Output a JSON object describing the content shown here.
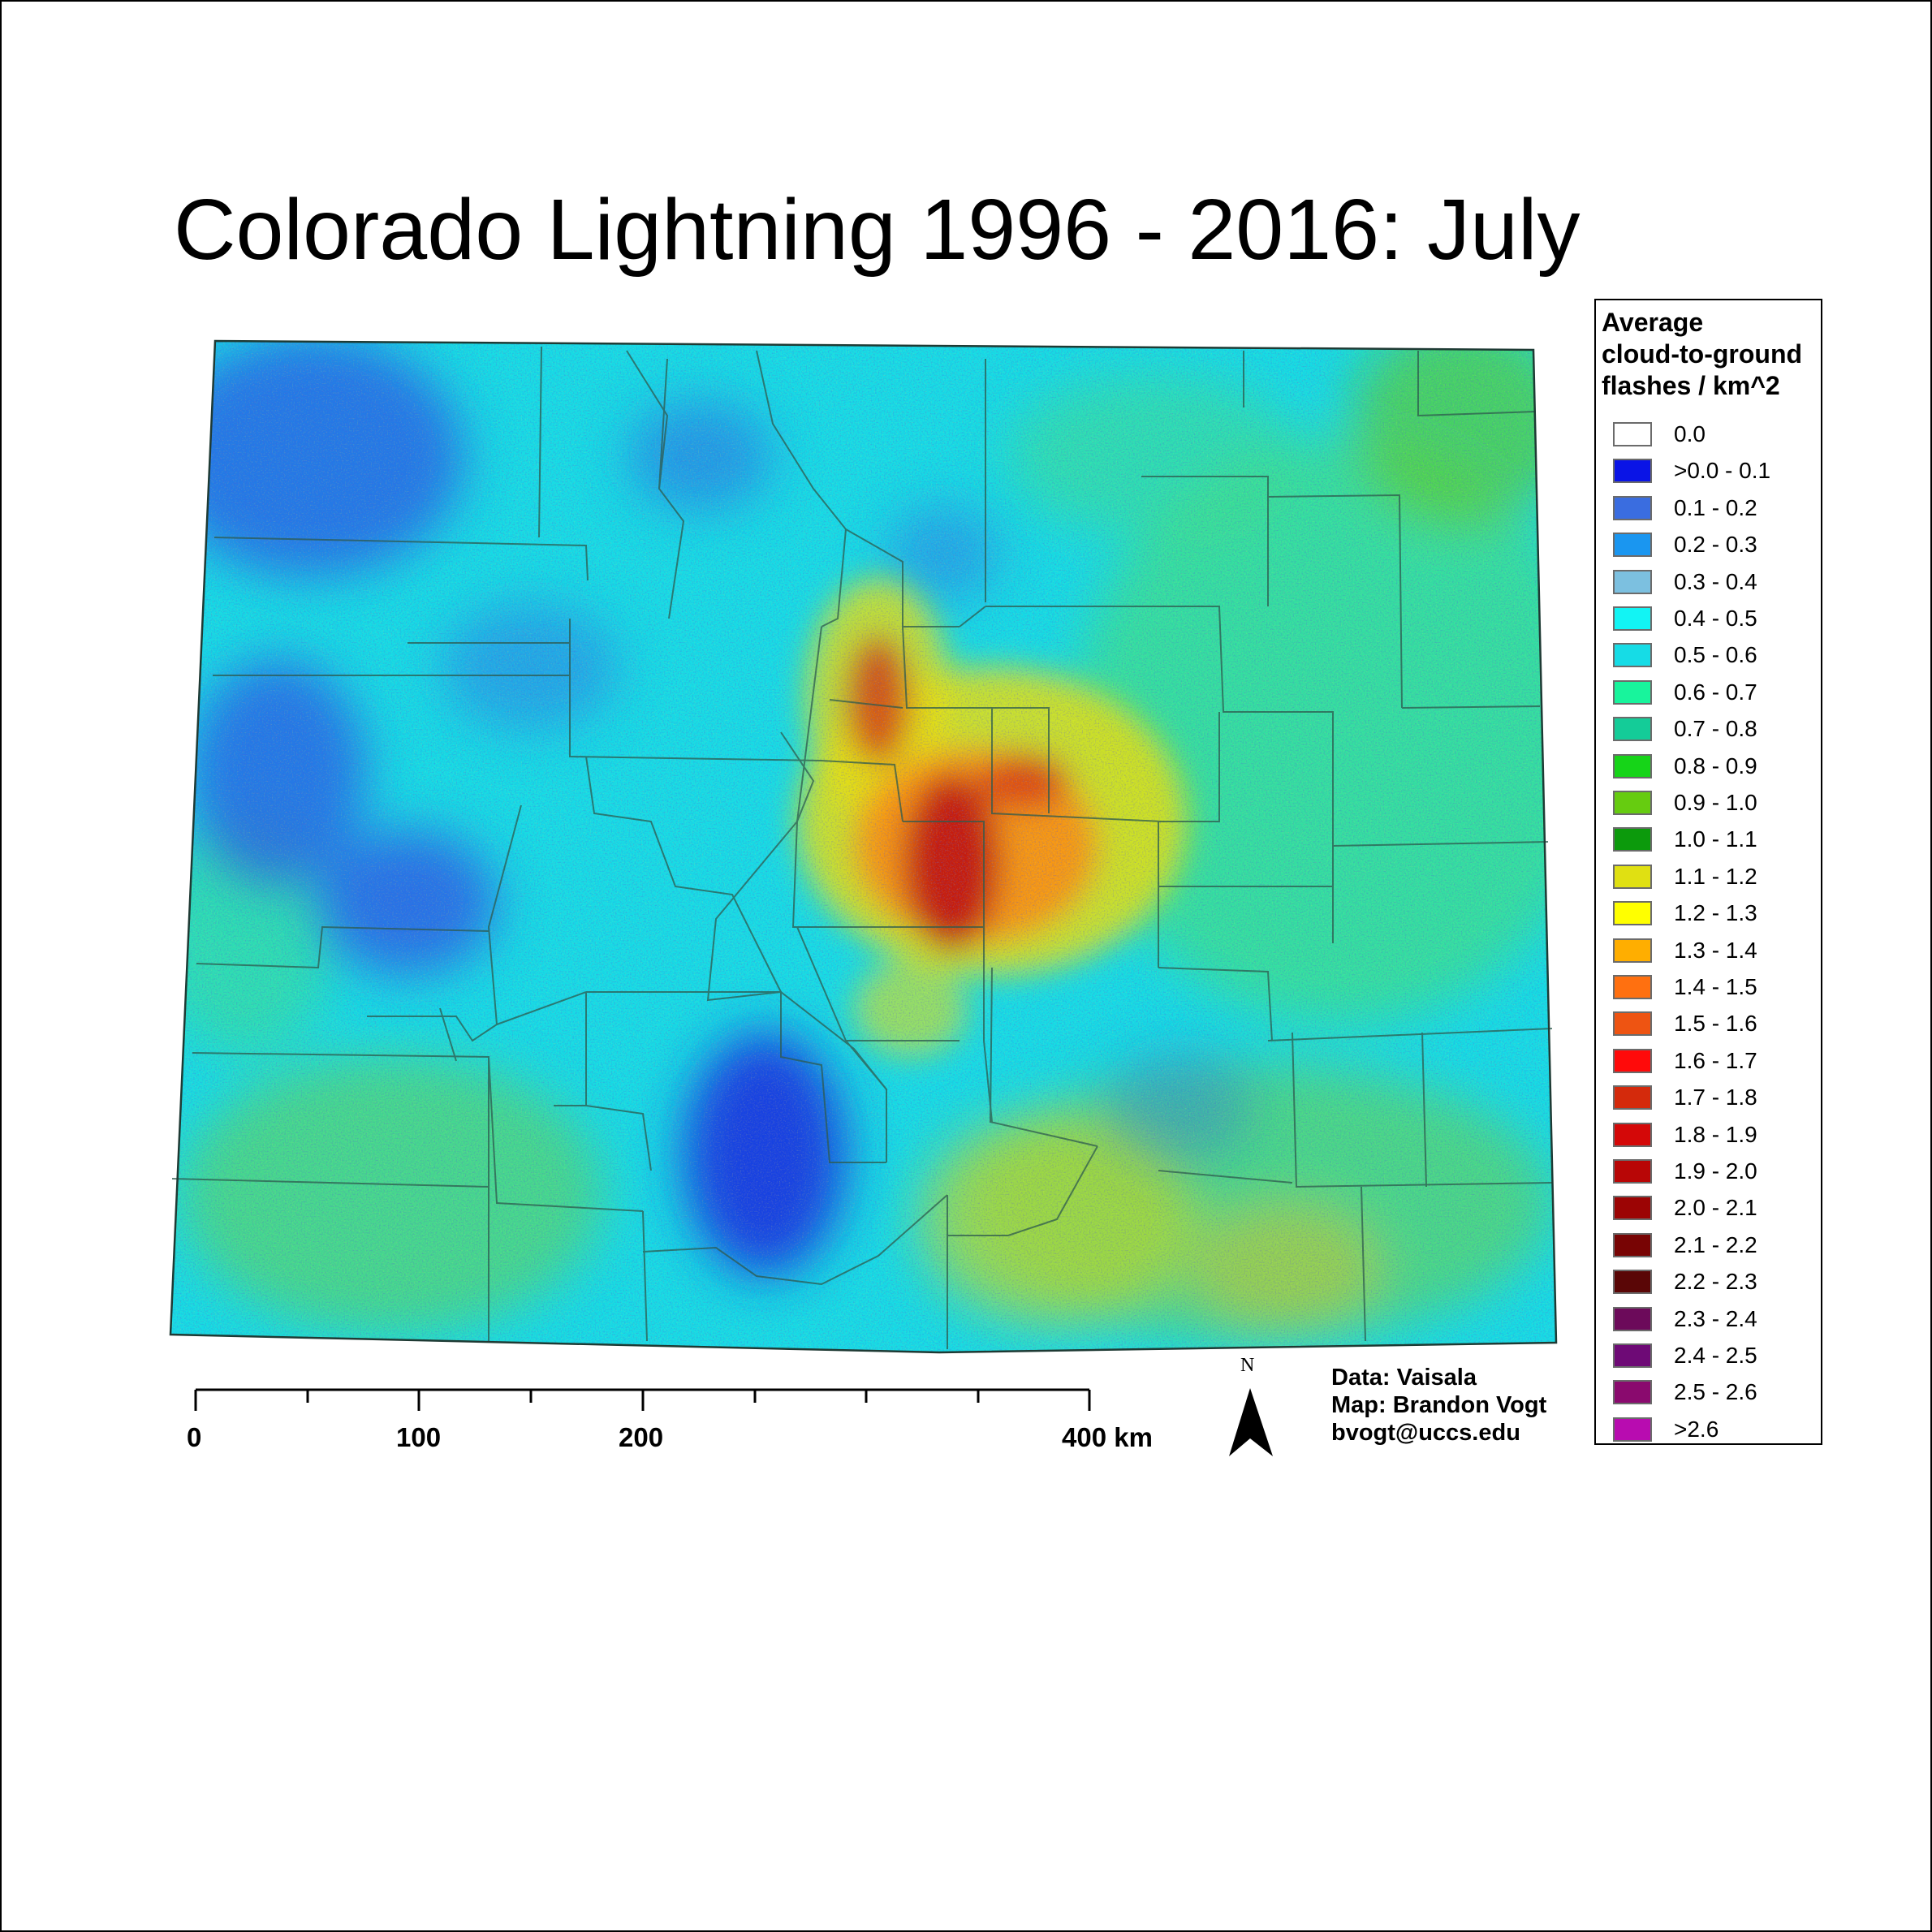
{
  "title": "Colorado Lightning 1996 - 2016:  July",
  "legend": {
    "title_lines": [
      "Average",
      "cloud-to-ground",
      "flashes / km^2"
    ],
    "classes": [
      {
        "label": "0.0",
        "color": "#ffffff"
      },
      {
        "label": ">0.0 - 0.1",
        "color": "#0a14e6"
      },
      {
        "label": "0.1 - 0.2",
        "color": "#3a6de0"
      },
      {
        "label": "0.2 - 0.3",
        "color": "#1a96f0"
      },
      {
        "label": "0.3 - 0.4",
        "color": "#7cc0e0"
      },
      {
        "label": "0.4 - 0.5",
        "color": "#12f4f4"
      },
      {
        "label": "0.5 - 0.6",
        "color": "#16dce6"
      },
      {
        "label": "0.6 - 0.7",
        "color": "#18f49c"
      },
      {
        "label": "0.7 - 0.8",
        "color": "#14cc98"
      },
      {
        "label": "0.8 - 0.9",
        "color": "#16d418"
      },
      {
        "label": "0.9 - 1.0",
        "color": "#66cc10"
      },
      {
        "label": "1.0 - 1.1",
        "color": "#0c9a0c"
      },
      {
        "label": "1.1 - 1.2",
        "color": "#e0e012"
      },
      {
        "label": "1.2 - 1.3",
        "color": "#ffff00"
      },
      {
        "label": "1.3 - 1.4",
        "color": "#ffae00"
      },
      {
        "label": "1.4 - 1.5",
        "color": "#ff7010"
      },
      {
        "label": "1.5 - 1.6",
        "color": "#ee5412"
      },
      {
        "label": "1.6 - 1.7",
        "color": "#ff0a0a"
      },
      {
        "label": "1.7 - 1.8",
        "color": "#d42a0c"
      },
      {
        "label": "1.8 - 1.9",
        "color": "#d40808"
      },
      {
        "label": "1.9 - 2.0",
        "color": "#b80606"
      },
      {
        "label": "2.0 - 2.1",
        "color": "#9c0404"
      },
      {
        "label": "2.1 - 2.2",
        "color": "#780404"
      },
      {
        "label": "2.2 - 2.3",
        "color": "#5a0606"
      },
      {
        "label": "2.3 - 2.4",
        "color": "#6c0a5a"
      },
      {
        "label": "2.4 - 2.5",
        "color": "#6e0a76"
      },
      {
        "label": "2.5 - 2.6",
        "color": "#8a0a6e"
      },
      {
        "label": ">2.6",
        "color": "#b80cb0"
      }
    ]
  },
  "scale_bar": {
    "labels": [
      "0",
      "100",
      "200",
      "400 km"
    ]
  },
  "north_arrow": {
    "letter": "N",
    "icon": "north-arrow-icon"
  },
  "credits": [
    "Data: Vaisala",
    "Map: Brandon Vogt",
    "bvogt@uccs.edu"
  ]
}
